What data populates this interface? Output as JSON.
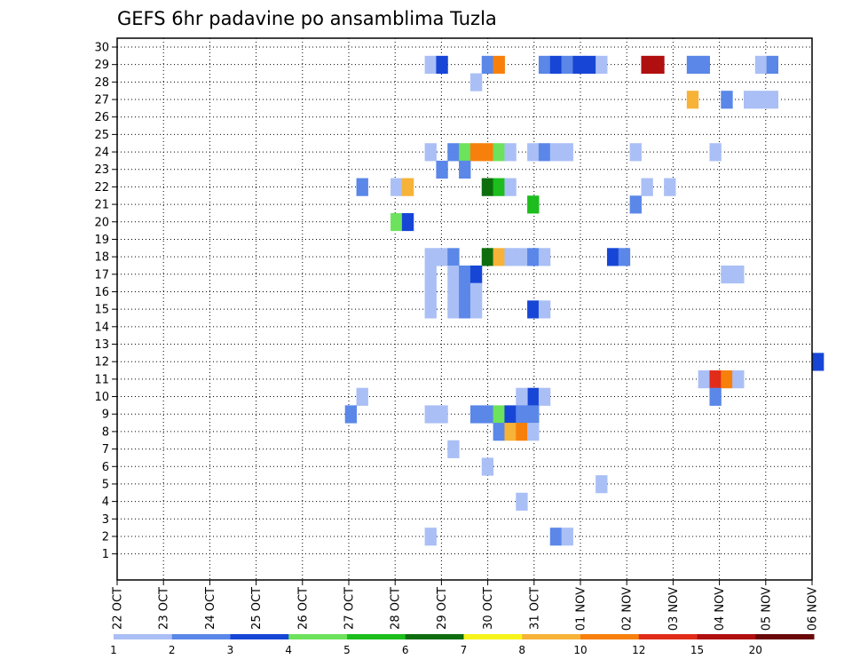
{
  "chart_data": {
    "type": "heatmap",
    "title": "GEFS 6hr padavine po ansamblima Tuzla",
    "y_ticks": [
      "1",
      "2",
      "3",
      "4",
      "5",
      "6",
      "7",
      "8",
      "9",
      "10",
      "11",
      "12",
      "13",
      "14",
      "15",
      "16",
      "17",
      "18",
      "19",
      "20",
      "21",
      "22",
      "23",
      "24",
      "25",
      "26",
      "27",
      "28",
      "29",
      "30"
    ],
    "x_ticks": [
      "22 OCT",
      "23 OCT",
      "24 OCT",
      "25 OCT",
      "26 OCT",
      "27 OCT",
      "28 OCT",
      "29 OCT",
      "30 OCT",
      "31 OCT",
      "01 NOV",
      "02 NOV",
      "03 NOV",
      "04 NOV",
      "05 NOV",
      "06 NOV"
    ],
    "xlim": [
      0,
      61
    ],
    "ylim": [
      0,
      30
    ],
    "grid": true,
    "colorbar": {
      "labels": [
        "1",
        "2",
        "3",
        "4",
        "5",
        "6",
        "7",
        "8",
        "10",
        "12",
        "15",
        "20"
      ],
      "colors": [
        "#aabff5",
        "#5a87e8",
        "#1746d6",
        "#6de25c",
        "#1cbd1c",
        "#0e6e0e",
        "#f7f41c",
        "#f7b238",
        "#f7800c",
        "#e22c1a",
        "#b00f0f",
        "#6a0808"
      ]
    },
    "cells": [
      [
        27,
        29,
        1
      ],
      [
        28,
        29,
        3
      ],
      [
        32,
        29,
        2
      ],
      [
        33,
        29,
        9
      ],
      [
        37,
        29,
        2
      ],
      [
        38,
        29,
        3
      ],
      [
        39,
        29,
        2
      ],
      [
        40,
        29,
        3
      ],
      [
        41,
        29,
        3
      ],
      [
        42,
        29,
        1
      ],
      [
        46,
        29,
        11
      ],
      [
        47,
        29,
        11
      ],
      [
        50,
        29,
        2
      ],
      [
        51,
        29,
        2
      ],
      [
        56,
        29,
        1
      ],
      [
        57,
        29,
        2
      ],
      [
        31,
        28,
        1
      ],
      [
        50,
        27,
        8
      ],
      [
        53,
        27,
        2
      ],
      [
        55,
        27,
        1
      ],
      [
        56,
        27,
        1
      ],
      [
        57,
        27,
        1
      ],
      [
        27,
        24,
        1
      ],
      [
        29,
        24,
        2
      ],
      [
        30,
        24,
        4
      ],
      [
        31,
        24,
        9
      ],
      [
        32,
        24,
        9
      ],
      [
        33,
        24,
        4
      ],
      [
        34,
        24,
        1
      ],
      [
        36,
        24,
        1
      ],
      [
        37,
        24,
        2
      ],
      [
        38,
        24,
        1
      ],
      [
        39,
        24,
        1
      ],
      [
        45,
        24,
        1
      ],
      [
        52,
        24,
        1
      ],
      [
        28,
        23,
        2
      ],
      [
        30,
        23,
        2
      ],
      [
        21,
        22,
        2
      ],
      [
        24,
        22,
        1
      ],
      [
        25,
        22,
        8
      ],
      [
        32,
        22,
        6
      ],
      [
        33,
        22,
        5
      ],
      [
        34,
        22,
        1
      ],
      [
        46,
        22,
        1
      ],
      [
        48,
        22,
        1
      ],
      [
        36,
        21,
        5
      ],
      [
        45,
        21,
        2
      ],
      [
        24,
        20,
        4
      ],
      [
        25,
        20,
        3
      ],
      [
        27,
        18,
        1
      ],
      [
        28,
        18,
        1
      ],
      [
        29,
        18,
        2
      ],
      [
        32,
        18,
        6
      ],
      [
        33,
        18,
        8
      ],
      [
        34,
        18,
        1
      ],
      [
        35,
        18,
        1
      ],
      [
        36,
        18,
        2
      ],
      [
        37,
        18,
        1
      ],
      [
        43,
        18,
        3
      ],
      [
        44,
        18,
        2
      ],
      [
        27,
        17,
        1
      ],
      [
        29,
        17,
        1
      ],
      [
        30,
        17,
        2
      ],
      [
        31,
        17,
        3
      ],
      [
        53,
        17,
        1
      ],
      [
        54,
        17,
        1
      ],
      [
        27,
        16,
        1
      ],
      [
        29,
        16,
        1
      ],
      [
        30,
        16,
        2
      ],
      [
        31,
        16,
        1
      ],
      [
        27,
        15,
        1
      ],
      [
        29,
        15,
        1
      ],
      [
        30,
        15,
        2
      ],
      [
        31,
        15,
        1
      ],
      [
        36,
        15,
        3
      ],
      [
        37,
        15,
        1
      ],
      [
        61,
        12,
        3
      ],
      [
        51,
        11,
        1
      ],
      [
        52,
        11,
        10
      ],
      [
        53,
        11,
        9
      ],
      [
        54,
        11,
        1
      ],
      [
        21,
        10,
        1
      ],
      [
        36,
        10,
        3
      ],
      [
        35,
        10,
        1
      ],
      [
        37,
        10,
        1
      ],
      [
        52,
        10,
        2
      ],
      [
        20,
        9,
        2
      ],
      [
        27,
        9,
        1
      ],
      [
        28,
        9,
        1
      ],
      [
        31,
        9,
        2
      ],
      [
        32,
        9,
        2
      ],
      [
        33,
        9,
        4
      ],
      [
        34,
        9,
        3
      ],
      [
        35,
        9,
        2
      ],
      [
        36,
        9,
        2
      ],
      [
        33,
        8,
        2
      ],
      [
        34,
        8,
        8
      ],
      [
        35,
        8,
        9
      ],
      [
        36,
        8,
        1
      ],
      [
        29,
        7,
        1
      ],
      [
        32,
        6,
        1
      ],
      [
        42,
        5,
        1
      ],
      [
        35,
        4,
        1
      ],
      [
        27,
        2,
        1
      ],
      [
        38,
        2,
        2
      ],
      [
        39,
        2,
        1
      ]
    ]
  }
}
